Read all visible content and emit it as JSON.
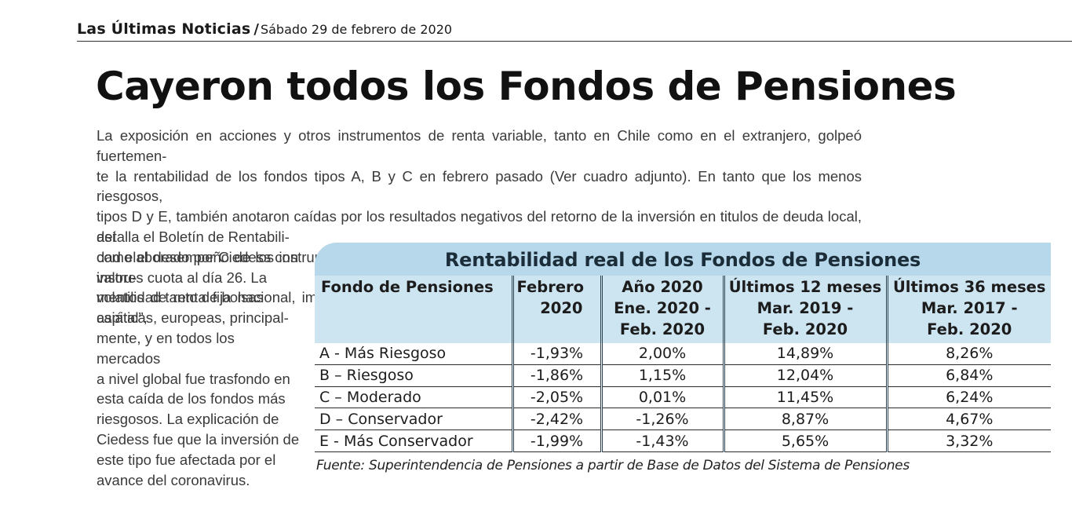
{
  "masthead": {
    "publication": "Las Últimas Noticias",
    "separator": "/",
    "date": "Sábado 29 de febrero de 2020"
  },
  "article": {
    "headline": "Cayeron todos los Fondos de Pensiones",
    "body_top": "La exposición en acciones y otros instrumentos de renta variable, tanto en Chile como en el extranjero, golpeó fuertemen-\nte la rentabilidad de los fondos tipos A, B y C en febrero pasado (Ver cuadro adjunto). En tanto que los menos riesgosos,\ntipos D y E, también anotaron caídas por los resultados negativos del retorno de la inversión en titulos de deuda local, así\ncomo el desempeño de los instrumentos de renta fija extranjeros. “Se observó un alza en las tasas de interés de los instru-\nmentos de renta fija nacional, impactando negativamente a los fondos conservadores a través de las pérdidas de capital”,",
    "body_col": "detalla el Boletín de Rentabili-\ndad elaborado por Ciedess con\nvalores cuota al día 26. La\nvolatilidad tanto de bolsas\nasiáticas, europeas, principal-\nmente, y en todos los mercados\na nivel global fue trasfondo en\nesta caída de los fondos más\nriesgosos. La explicación de\nCiedess fue que la inversión de\neste tipo fue afectada por el\navance del coronavirus."
  },
  "table": {
    "title": "Rentabilidad real de los Fondos de Pensiones",
    "headers": [
      "Fondo de Pensiones",
      "Febrero\n2020",
      "Año 2020\nEne. 2020 -\nFeb. 2020",
      "Últimos 12 meses\nMar. 2019 -\nFeb. 2020",
      "Últimos 36 meses\nMar. 2017 -\nFeb. 2020"
    ],
    "rows": [
      [
        "A - Más Riesgoso",
        "-1,93%",
        "2,00%",
        "14,89%",
        "8,26%"
      ],
      [
        "B – Riesgoso",
        "-1,86%",
        "1,15%",
        "12,04%",
        "6,84%"
      ],
      [
        "C – Moderado",
        "-2,05%",
        "0,01%",
        "11,45%",
        "6,24%"
      ],
      [
        "D – Conservador",
        "-2,42%",
        "-1,26%",
        "8,87%",
        "4,67%"
      ],
      [
        "E - Más Conservador",
        "-1,99%",
        "-1,43%",
        "5,65%",
        "3,32%"
      ]
    ],
    "source": "Fuente: Superintendencia de Pensiones a partir de Base de Datos del Sistema de Pensiones"
  },
  "colors": {
    "table_title_bg": "#b6d8ea",
    "table_header_bg": "#cde4f1",
    "text": "#2b2b2b"
  }
}
